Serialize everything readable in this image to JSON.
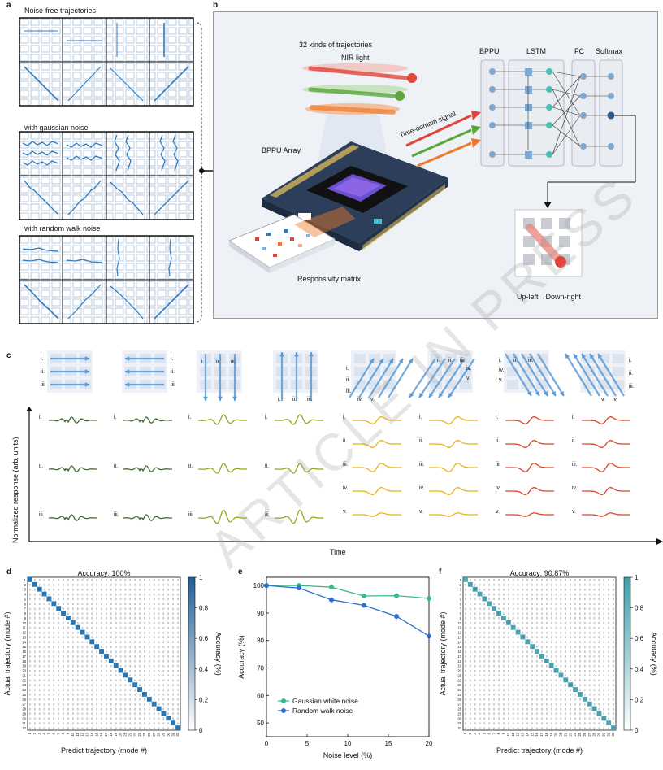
{
  "panel_labels": {
    "a": "a",
    "b": "b",
    "c": "c",
    "d": "d",
    "e": "e",
    "f": "f"
  },
  "panel_a": {
    "titles": [
      "Noise-free trajectories",
      "with gaussian noise",
      "with random walk noise"
    ]
  },
  "panel_b": {
    "trajectories_title": "32 kinds of trajectories",
    "nir_light": "NIR light",
    "time_domain": "Time-domain signal",
    "bppu_array": "BPPU Array",
    "responsivity": "Responsivity matrix",
    "network_labels": [
      "BPPU",
      "LSTM",
      "FC",
      "Softmax"
    ],
    "result": "Up-left→Down-right",
    "colors": {
      "red": "#e0453a",
      "green": "#5aa83c",
      "orange": "#f07a2a",
      "chip": "#2c3e5a"
    }
  },
  "panel_c": {
    "ylabel": "Normalized response (arb. units)",
    "xlabel": "Time",
    "roman3": [
      "i.",
      "ii.",
      "iii."
    ],
    "roman5": [
      "i.",
      "ii.",
      "iii.",
      "iv.",
      "v."
    ],
    "colors": [
      "#3e6b2a",
      "#3e6b2a",
      "#93a81e",
      "#93a81e",
      "#e8b418",
      "#e8b418",
      "#d9472b",
      "#d9472b"
    ]
  },
  "chart_data": [
    {
      "type": "heatmap",
      "title": "Accuracy: 100%",
      "xlabel": "Predict trajectory (mode #)",
      "ylabel": "Actual trajectory (mode #)",
      "colorbar_label": "Accuracy (%)",
      "colorbar_ticks": [
        "0",
        "0.2",
        "0.4",
        "0.6",
        "0.8",
        "1"
      ],
      "n_classes": 32,
      "diagonal_value": 1,
      "off_diagonal_value": 0
    },
    {
      "type": "line",
      "xlabel": "Noise level (%)",
      "ylabel": "Accuracy (%)",
      "xlim": [
        0,
        20
      ],
      "ylim": [
        45,
        103
      ],
      "xticks": [
        0,
        5,
        10,
        15,
        20
      ],
      "yticks": [
        50,
        60,
        70,
        80,
        90,
        100
      ],
      "legend_position": "bottom-center",
      "series": [
        {
          "name": "Gaussian white noise",
          "color": "#3cb88a",
          "x": [
            0,
            4,
            8,
            12,
            16,
            20
          ],
          "y": [
            100,
            100,
            99.4,
            96.2,
            96.3,
            95.3
          ]
        },
        {
          "name": "Random walk noise",
          "color": "#2f6fd0",
          "x": [
            0,
            4,
            8,
            12,
            16,
            20
          ],
          "y": [
            100,
            99.1,
            94.8,
            92.8,
            88.8,
            81.6
          ]
        }
      ]
    },
    {
      "type": "heatmap",
      "title": "Accuracy: 90.87%",
      "xlabel": "Predict trajectory (mode #)",
      "ylabel": "Actual trajectory (mode #)",
      "colorbar_label": "Accuracy (%)",
      "colorbar_ticks": [
        "0",
        "0.2",
        "0.4",
        "0.6",
        "0.8",
        "1"
      ],
      "n_classes": 32,
      "overall_accuracy": 0.9087
    }
  ],
  "watermark": "ARTICLE IN PRESS"
}
